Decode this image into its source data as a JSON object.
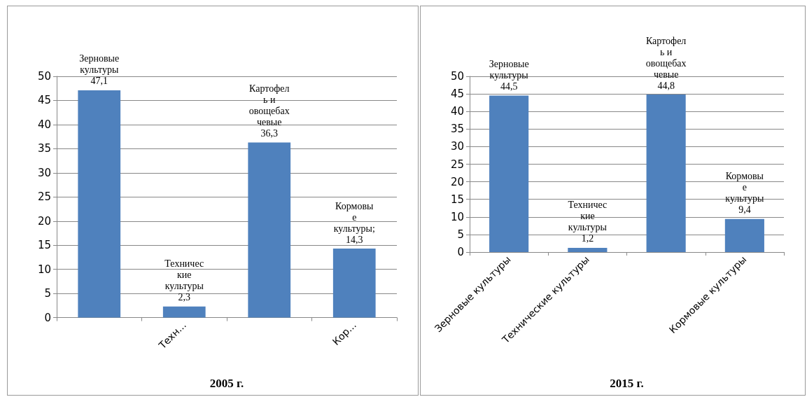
{
  "chart_data": [
    {
      "type": "bar",
      "xlabel": "2005 г.",
      "categories": [
        null,
        "Техн...",
        null,
        "Кор..."
      ],
      "values": [
        47.1,
        2.3,
        36.3,
        14.3
      ],
      "color": "#4f81bd",
      "value_labels": [
        "Зерновые\nкультуры\n47,1",
        "Техничес\nкие\nкультуры\n2,3",
        "Картофел\nь и\nовощебах\nчевые\n36,3",
        "Кормовы\nе\nкультуры;\n14,3"
      ],
      "ylim": [
        0,
        50
      ],
      "yticks": [
        0,
        5,
        10,
        15,
        20,
        25,
        30,
        35,
        40,
        45,
        50
      ],
      "grid": "y"
    },
    {
      "type": "bar",
      "xlabel": "2015 г.",
      "categories": [
        "Зерновые культуры",
        "Технические культуры",
        null,
        "Кормовые культуры"
      ],
      "values": [
        44.5,
        1.2,
        44.8,
        9.4
      ],
      "color": "#4f81bd",
      "value_labels": [
        "Зерновые\nкультуры\n44,5",
        "Техничес\nкие\nкультуры\n1,2",
        "Картофел\nь и\nовощебах\nчевые\n44,8",
        "Кормовы\nе\nкультуры\n9,4"
      ],
      "ylim": [
        0,
        50
      ],
      "yticks": [
        0,
        5,
        10,
        15,
        20,
        25,
        30,
        35,
        40,
        45,
        50
      ],
      "grid": "y"
    }
  ]
}
